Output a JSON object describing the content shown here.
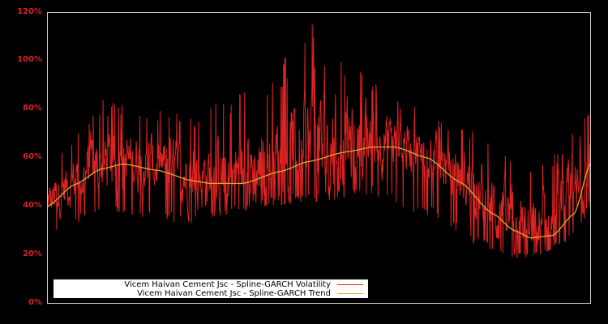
{
  "chart_data": {
    "type": "line",
    "title": "",
    "xlabel": "",
    "ylabel": "",
    "ylim": [
      0,
      120
    ],
    "y_ticks": [
      "0%",
      "20%",
      "40%",
      "60%",
      "80%",
      "100%",
      "120%"
    ],
    "y_tick_values": [
      0,
      20,
      40,
      60,
      80,
      100,
      120
    ],
    "grid": false,
    "legend_position": "lower left",
    "background": "#000000",
    "axis_color": "#cccccc",
    "tick_color": "#dd2222",
    "series": [
      {
        "name": "Vicem Haivan Cement Jsc - Spline-GARCH Volatility",
        "color": "#dd2222",
        "description": "Noisy daily volatility oscillating around the trend; min ~18%, max spike ~115%",
        "approx_range_by_position": [
          {
            "x_frac": 0.0,
            "low": 26,
            "high": 57
          },
          {
            "x_frac": 0.1,
            "low": 38,
            "high": 84
          },
          {
            "x_frac": 0.25,
            "low": 32,
            "high": 78
          },
          {
            "x_frac": 0.39,
            "low": 40,
            "high": 90
          },
          {
            "x_frac": 0.49,
            "low": 42,
            "high": 115
          },
          {
            "x_frac": 0.6,
            "low": 44,
            "high": 91
          },
          {
            "x_frac": 0.72,
            "low": 33,
            "high": 78
          },
          {
            "x_frac": 0.82,
            "low": 20,
            "high": 67
          },
          {
            "x_frac": 0.88,
            "low": 18,
            "high": 53
          },
          {
            "x_frac": 0.95,
            "low": 24,
            "high": 67
          },
          {
            "x_frac": 1.0,
            "low": 38,
            "high": 82
          }
        ]
      },
      {
        "name": "Vicem Haivan Cement Jsc - Spline-GARCH Trend",
        "color": "#ddaa33",
        "x_frac": [
          0.0,
          0.05,
          0.1,
          0.14,
          0.2,
          0.27,
          0.3,
          0.36,
          0.43,
          0.48,
          0.55,
          0.6,
          0.64,
          0.7,
          0.76,
          0.82,
          0.86,
          0.89,
          0.93,
          0.97,
          1.0
        ],
        "values": [
          40,
          49,
          55.5,
          57.5,
          55,
          50.5,
          49.5,
          49.5,
          54.5,
          58.5,
          62.5,
          64.5,
          64.5,
          60,
          50,
          37,
          30,
          27,
          28,
          37,
          58
        ]
      }
    ]
  },
  "legend": {
    "items": [
      {
        "label": "Vicem Haivan Cement Jsc - Spline-GARCH Volatility",
        "color": "#dd2222"
      },
      {
        "label": "Vicem Haivan Cement Jsc - Spline-GARCH Trend",
        "color": "#ddaa33"
      }
    ]
  }
}
